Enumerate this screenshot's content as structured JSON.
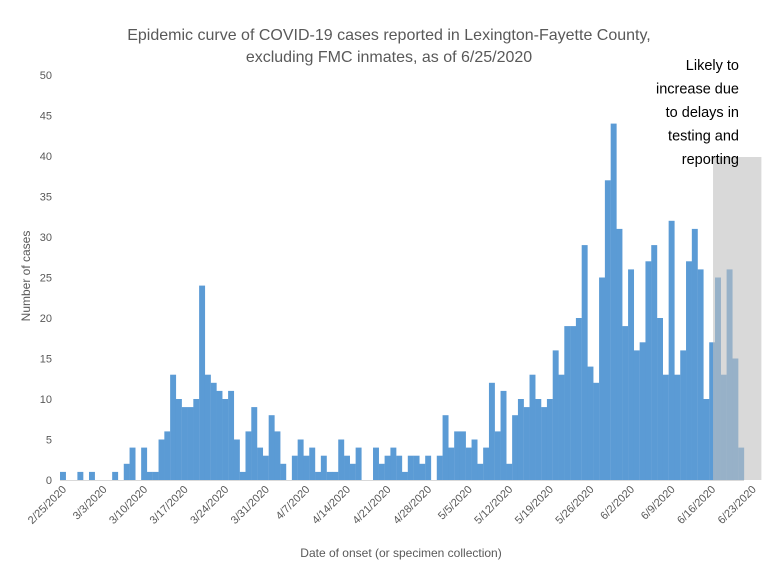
{
  "chart_data": {
    "type": "bar",
    "title": "Epidemic curve of COVID-19 cases reported in Lexington-Fayette County, excluding FMC inmates, as of 6/25/2020",
    "title_lines": [
      "Epidemic curve of COVID-19 cases reported in Lexington-Fayette County,",
      "excluding FMC inmates, as of 6/25/2020"
    ],
    "xlabel": "Date of onset (or specimen collection)",
    "ylabel": "Number of cases",
    "ylim": [
      0,
      50
    ],
    "yticks": [
      0,
      5,
      10,
      15,
      20,
      25,
      30,
      35,
      40,
      45,
      50
    ],
    "grid": false,
    "bar_color": "#5B9BD5",
    "shade_color": "#BFBFBF",
    "x_start": "2020-02-25",
    "x_end": "2020-06-25",
    "x_tick_labels": [
      "2/25/2020",
      "3/3/2020",
      "3/10/2020",
      "3/17/2020",
      "3/24/2020",
      "3/31/2020",
      "4/7/2020",
      "4/14/2020",
      "4/21/2020",
      "4/28/2020",
      "5/5/2020",
      "5/12/2020",
      "5/19/2020",
      "5/26/2020",
      "6/2/2020",
      "6/9/2020",
      "6/16/2020",
      "6/23/2020"
    ],
    "values": [
      1,
      0,
      0,
      1,
      0,
      1,
      0,
      0,
      0,
      1,
      0,
      2,
      4,
      0,
      4,
      1,
      1,
      5,
      6,
      13,
      10,
      9,
      9,
      10,
      24,
      13,
      12,
      11,
      10,
      11,
      5,
      1,
      6,
      9,
      4,
      3,
      8,
      6,
      2,
      0,
      3,
      5,
      3,
      4,
      1,
      3,
      1,
      1,
      5,
      3,
      2,
      4,
      0,
      0,
      4,
      2,
      3,
      4,
      3,
      1,
      3,
      3,
      2,
      3,
      0,
      3,
      8,
      4,
      6,
      6,
      4,
      5,
      2,
      4,
      12,
      6,
      11,
      2,
      8,
      10,
      9,
      13,
      10,
      9,
      10,
      16,
      13,
      19,
      19,
      20,
      29,
      14,
      12,
      25,
      37,
      44,
      31,
      19,
      26,
      16,
      17,
      27,
      29,
      20,
      13,
      32,
      13,
      16,
      27,
      31,
      26,
      10,
      17,
      25,
      13,
      26,
      15,
      4
    ],
    "annotation": {
      "shaded_from": "2020-06-17",
      "shaded_to": "2020-06-25",
      "text_lines": [
        "Likely to",
        "increase due",
        "to delays in",
        "testing and",
        "reporting"
      ]
    }
  }
}
